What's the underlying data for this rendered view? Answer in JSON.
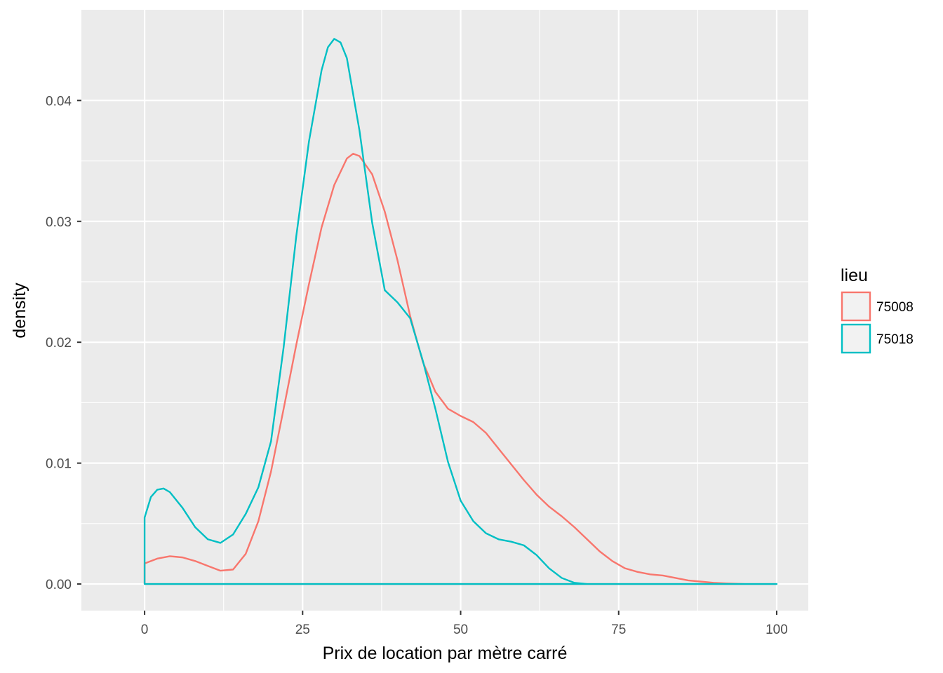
{
  "chart_data": {
    "type": "line",
    "xlabel": "Prix de location par mètre carré",
    "ylabel": "density",
    "xlim": [
      -10,
      105
    ],
    "ylim": [
      -0.0022,
      0.0475
    ],
    "x_ticks": [
      0,
      25,
      50,
      75,
      100
    ],
    "x_tick_labels": [
      "0",
      "25",
      "50",
      "75",
      "100"
    ],
    "y_ticks": [
      0,
      0.01,
      0.02,
      0.03,
      0.04
    ],
    "y_tick_labels": [
      "0.00",
      "0.01",
      "0.02",
      "0.03",
      "0.04"
    ],
    "grid": true,
    "legend": {
      "title": "lieu",
      "position": "right"
    },
    "series": [
      {
        "name": "75008",
        "color": "#F8766D",
        "x": [
          0,
          2,
          4,
          6,
          8,
          10,
          12,
          14,
          16,
          18,
          20,
          22,
          24,
          26,
          28,
          30,
          32,
          33,
          34,
          36,
          38,
          40,
          42,
          44,
          46,
          48,
          50,
          52,
          54,
          56,
          58,
          60,
          62,
          64,
          66,
          68,
          70,
          72,
          74,
          76,
          78,
          80,
          82,
          84,
          86,
          88,
          90,
          92,
          95,
          100
        ],
        "y": [
          0.0017,
          0.0021,
          0.0023,
          0.0022,
          0.0019,
          0.0015,
          0.0011,
          0.0012,
          0.0025,
          0.0052,
          0.0093,
          0.0145,
          0.0198,
          0.0248,
          0.0295,
          0.033,
          0.0352,
          0.0356,
          0.0354,
          0.0339,
          0.0308,
          0.0268,
          0.0222,
          0.0184,
          0.0159,
          0.0145,
          0.0139,
          0.0134,
          0.0125,
          0.0112,
          0.0099,
          0.0086,
          0.0074,
          0.0064,
          0.0056,
          0.0047,
          0.0037,
          0.0027,
          0.0019,
          0.0013,
          0.001,
          0.0008,
          0.0007,
          0.0005,
          0.0003,
          0.0002,
          0.0001,
          5e-05,
          0.0,
          0.0
        ]
      },
      {
        "name": "75018",
        "color": "#00BFC4",
        "x": [
          0,
          1,
          2,
          3,
          4,
          6,
          8,
          10,
          12,
          14,
          16,
          18,
          20,
          22,
          24,
          26,
          28,
          29,
          30,
          31,
          32,
          34,
          36,
          38,
          40,
          42,
          44,
          46,
          48,
          50,
          52,
          54,
          56,
          58,
          60,
          62,
          64,
          66,
          68,
          70,
          75,
          100
        ],
        "y": [
          0.0055,
          0.0072,
          0.0078,
          0.0079,
          0.0076,
          0.0063,
          0.0047,
          0.0037,
          0.0034,
          0.0041,
          0.0058,
          0.008,
          0.0118,
          0.0196,
          0.0288,
          0.0366,
          0.0425,
          0.0444,
          0.0451,
          0.0448,
          0.0435,
          0.0375,
          0.0299,
          0.0243,
          0.0233,
          0.022,
          0.0185,
          0.0145,
          0.0101,
          0.0069,
          0.0052,
          0.0042,
          0.0037,
          0.0035,
          0.0032,
          0.0024,
          0.0013,
          0.0005,
          0.0001,
          0.0,
          0.0,
          0.0
        ]
      }
    ]
  }
}
